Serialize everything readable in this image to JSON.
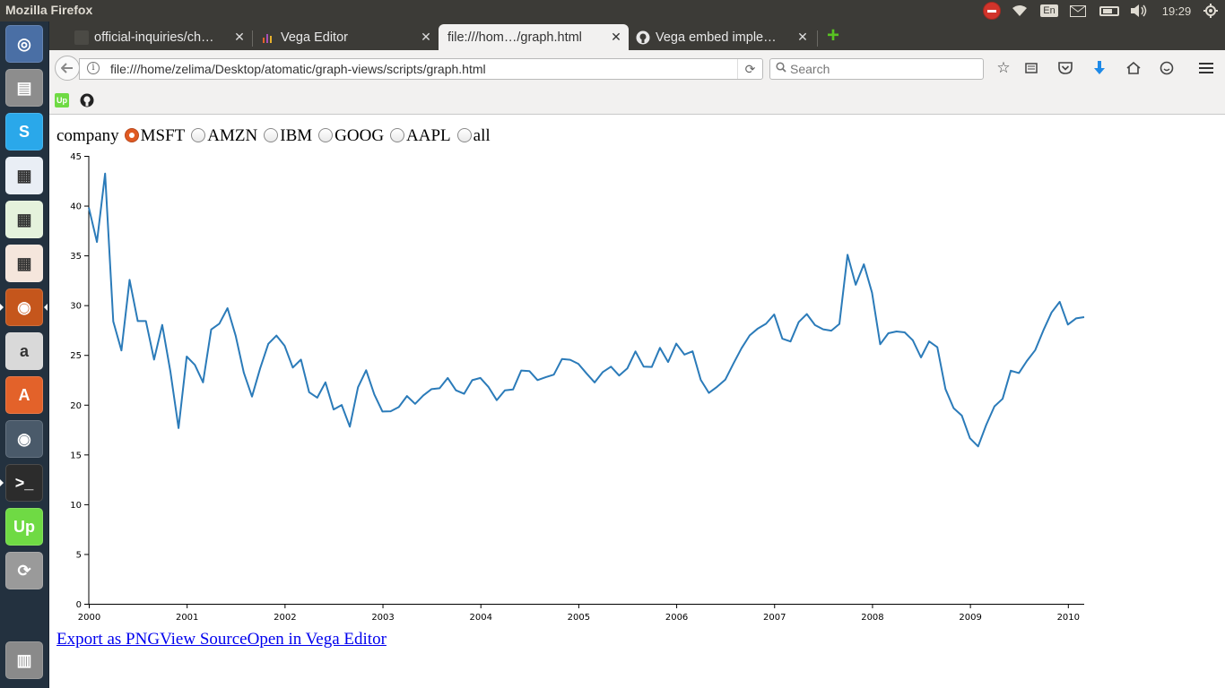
{
  "top_panel": {
    "window_title": "Mozilla Firefox",
    "lang": "En",
    "clock": "19:29"
  },
  "launcher": {
    "items": [
      {
        "name": "ubuntu-dash-icon",
        "color": "#4a6fa5"
      },
      {
        "name": "files-icon",
        "color": "#8d8d8d"
      },
      {
        "name": "skype-icon",
        "color": "#2aa8ea"
      },
      {
        "name": "libreoffice-writer-icon",
        "color": "#e9eef5"
      },
      {
        "name": "libreoffice-calc-icon",
        "color": "#e5f2dc"
      },
      {
        "name": "libreoffice-impress-icon",
        "color": "#f5e6dc"
      },
      {
        "name": "firefox-icon",
        "color": "#c5561c"
      },
      {
        "name": "amazon-icon",
        "color": "#d9d9d9"
      },
      {
        "name": "software-center-icon",
        "color": "#e3622a"
      },
      {
        "name": "chrome-icon",
        "color": "#4a5a6a"
      },
      {
        "name": "terminal-icon",
        "color": "#2c2c2c"
      },
      {
        "name": "upwork-icon",
        "color": "#6fda44"
      },
      {
        "name": "update-manager-icon",
        "color": "#9a9a9a"
      },
      {
        "name": "trash-icon",
        "color": "#8a8a8a"
      }
    ]
  },
  "tabs": [
    {
      "label": "official-inquiries/ch…",
      "active": false
    },
    {
      "label": "Vega Editor",
      "active": false
    },
    {
      "label": "file:///hom…/graph.html",
      "active": true
    },
    {
      "label": "Vega embed imple…",
      "active": false
    }
  ],
  "navbar": {
    "url": "file:///home/zelima/Desktop/atomatic/graph-views/scripts/graph.html",
    "search_placeholder": "Search"
  },
  "bookmarks": [
    {
      "name": "upwork-bookmark-icon",
      "glyph": "Up"
    },
    {
      "name": "github-bookmark-icon",
      "glyph": "GH"
    }
  ],
  "page": {
    "radio_caption": "company",
    "radio_options": [
      "MSFT",
      "AMZN",
      "IBM",
      "GOOG",
      "AAPL",
      "all"
    ],
    "selected": "MSFT",
    "links": [
      "Export as PNG",
      "View Source",
      "Open in Vega Editor"
    ]
  },
  "chart_data": {
    "type": "line",
    "title": "",
    "xlabel": "",
    "ylabel": "",
    "x_ticks": [
      "2000",
      "2001",
      "2002",
      "2003",
      "2004",
      "2005",
      "2006",
      "2007",
      "2008",
      "2009",
      "2010"
    ],
    "y_ticks": [
      0,
      5,
      10,
      15,
      20,
      25,
      30,
      35,
      40,
      45
    ],
    "ylim": [
      0,
      45
    ],
    "xlim": [
      "2000-01",
      "2010-03"
    ],
    "line_color": "#2b7bb9",
    "series": [
      {
        "x": [
          "2000-01",
          "2000-02",
          "2000-03",
          "2000-04",
          "2000-05",
          "2000-06",
          "2000-07",
          "2000-08",
          "2000-09",
          "2000-10",
          "2000-11",
          "2000-12",
          "2001-01",
          "2001-02",
          "2001-03",
          "2001-04",
          "2001-05",
          "2001-06",
          "2001-07",
          "2001-08",
          "2001-09",
          "2001-10",
          "2001-11",
          "2001-12",
          "2002-01",
          "2002-02",
          "2002-03",
          "2002-04",
          "2002-05",
          "2002-06",
          "2002-07",
          "2002-08",
          "2002-09",
          "2002-10",
          "2002-11",
          "2002-12",
          "2003-01",
          "2003-02",
          "2003-03",
          "2003-04",
          "2003-05",
          "2003-06",
          "2003-07",
          "2003-08",
          "2003-09",
          "2003-10",
          "2003-11",
          "2003-12",
          "2004-01",
          "2004-02",
          "2004-03",
          "2004-04",
          "2004-05",
          "2004-06",
          "2004-07",
          "2004-08",
          "2004-09",
          "2004-10",
          "2004-11",
          "2004-12",
          "2005-01",
          "2005-02",
          "2005-03",
          "2005-04",
          "2005-05",
          "2005-06",
          "2005-07",
          "2005-08",
          "2005-09",
          "2005-10",
          "2005-11",
          "2005-12",
          "2006-01",
          "2006-02",
          "2006-03",
          "2006-04",
          "2006-05",
          "2006-06",
          "2006-07",
          "2006-08",
          "2006-09",
          "2006-10",
          "2006-11",
          "2006-12",
          "2007-01",
          "2007-02",
          "2007-03",
          "2007-04",
          "2007-05",
          "2007-06",
          "2007-07",
          "2007-08",
          "2007-09",
          "2007-10",
          "2007-11",
          "2007-12",
          "2008-01",
          "2008-02",
          "2008-03",
          "2008-04",
          "2008-05",
          "2008-06",
          "2008-07",
          "2008-08",
          "2008-09",
          "2008-10",
          "2008-11",
          "2008-12",
          "2009-01",
          "2009-02",
          "2009-03",
          "2009-04",
          "2009-05",
          "2009-06",
          "2009-07",
          "2009-08",
          "2009-09",
          "2009-10",
          "2009-11",
          "2009-12",
          "2010-01",
          "2010-02",
          "2010-03"
        ],
        "values": [
          39.81,
          36.35,
          43.22,
          28.37,
          25.45,
          32.54,
          28.4,
          28.4,
          24.53,
          28.02,
          23.34,
          17.65,
          24.84,
          24.0,
          22.25,
          27.56,
          28.14,
          29.7,
          26.93,
          23.21,
          20.82,
          23.65,
          26.12,
          26.95,
          25.92,
          23.73,
          24.53,
          21.26,
          20.71,
          22.25,
          19.52,
          19.97,
          17.79,
          21.75,
          23.46,
          21.03,
          19.31,
          19.34,
          19.76,
          20.87,
          20.09,
          20.93,
          21.56,
          21.65,
          22.69,
          21.45,
          21.1,
          22.46,
          22.69,
          21.77,
          20.46,
          21.45,
          21.53,
          23.44,
          23.38,
          22.47,
          22.76,
          23.02,
          24.6,
          24.52,
          24.11,
          23.15,
          22.24,
          23.28,
          23.82,
          22.93,
          23.64,
          25.35,
          23.83,
          23.8,
          25.71,
          24.29,
          26.14,
          25.04,
          25.36,
          22.5,
          21.19,
          21.8,
          22.51,
          24.13,
          25.68,
          26.96,
          27.66,
          28.13,
          29.07,
          26.63,
          26.35,
          28.3,
          29.11,
          28.0,
          27.58,
          27.44,
          28.12,
          35.06,
          32.05,
          34.11,
          31.26,
          26.07,
          27.18,
          27.36,
          27.27,
          26.47,
          24.75,
          26.36,
          25.78,
          21.57,
          19.66,
          18.91,
          16.63,
          15.81,
          17.99,
          19.84,
          20.59,
          23.42,
          23.18,
          24.43,
          25.49,
          27.48,
          29.27,
          30.34,
          28.05,
          28.67,
          28.8
        ]
      }
    ]
  }
}
